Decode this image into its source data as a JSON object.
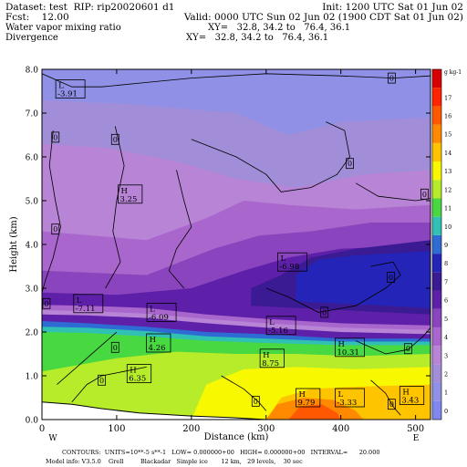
{
  "header": {
    "dataset": "Dataset: test  RIP: rip20020601 d1",
    "init": "Init: 1200 UTC Sat 01 Jun 02",
    "fcst": "Fcst:    12.00",
    "valid": "Valid: 0000 UTC Sun 02 Jun 02 (1900 CDT Sat 01 Jun 02)",
    "field1": "Water vapor mixing ratio",
    "xy1": "XY=   32.8, 34.2 to   76.4, 36.1",
    "field2": "Divergence",
    "xy2": "XY=   32.8, 34.2 to   76.4, 36.1"
  },
  "footer": {
    "line1": "CONTOURS:  UNITS=10**-5 s**-1   LOW= 0.000000+00   HIGH= 0.000000+00   INTERVAL=      20.000",
    "line2": "Model info: V3.5.0    Grell         Blackadar   Simple ice       12 km,   29 levels,    30 sec"
  },
  "chart_data": {
    "type": "heatmap",
    "xlabel": "Distance (km)",
    "ylabel": "Height (km)",
    "xlim": [
      0,
      520
    ],
    "ylim": [
      0,
      8
    ],
    "x_ticks": [
      "0",
      "100",
      "200",
      "300",
      "400",
      "500"
    ],
    "y_ticks": [
      "0.0",
      "1.0",
      "2.0",
      "3.0",
      "4.0",
      "5.0",
      "6.0",
      "7.0",
      "8.0"
    ],
    "endpoint_left": "W",
    "endpoint_right": "E",
    "colorbar": {
      "unit": "g kg-1",
      "levels": [
        "0",
        "1",
        "2",
        "3",
        "4",
        "5",
        "6",
        "7",
        "8",
        "9",
        "10",
        "11",
        "12",
        "13",
        "14",
        "15",
        "16",
        "17",
        "18"
      ],
      "colors": [
        "#8088ee",
        "#9090e6",
        "#a28ed8",
        "#b784d6",
        "#a966cc",
        "#8a44be",
        "#5e1fa9",
        "#3a1b94",
        "#2424b8",
        "#2e6cd4",
        "#30c1b3",
        "#48d842",
        "#b6ec2a",
        "#f8f800",
        "#ffc400",
        "#ff8a00",
        "#ff5800",
        "#ff2400",
        "#d80000"
      ]
    },
    "annotations": [
      {
        "label": "L",
        "value": "-3.91",
        "x": 38,
        "y": 7.55
      },
      {
        "label": "H",
        "value": "3.25",
        "x": 118,
        "y": 5.15
      },
      {
        "label": "L",
        "value": "-6.98",
        "x": 335,
        "y": 3.6
      },
      {
        "label": "L",
        "value": "-7.11",
        "x": 62,
        "y": 2.65
      },
      {
        "label": "L",
        "value": "-6.09",
        "x": 160,
        "y": 2.45
      },
      {
        "label": "L",
        "value": "-5.16",
        "x": 320,
        "y": 2.15
      },
      {
        "label": "H",
        "value": "4.26",
        "x": 156,
        "y": 1.75
      },
      {
        "label": "H",
        "value": "10.31",
        "x": 412,
        "y": 1.65
      },
      {
        "label": "H",
        "value": "8.75",
        "x": 308,
        "y": 1.4
      },
      {
        "label": "H",
        "value": "6.35",
        "x": 130,
        "y": 1.05
      },
      {
        "label": "H",
        "value": "9.79",
        "x": 356,
        "y": 0.5
      },
      {
        "label": "L",
        "value": "-3.33",
        "x": 412,
        "y": 0.5
      },
      {
        "label": "H",
        "value": "3.43",
        "x": 495,
        "y": 0.55
      }
    ],
    "zero_labels": [
      {
        "value": "0",
        "x": 468,
        "y": 7.8
      },
      {
        "value": "0",
        "x": 18,
        "y": 6.45
      },
      {
        "value": "0",
        "x": 98,
        "y": 6.4
      },
      {
        "value": "0",
        "x": 412,
        "y": 5.85
      },
      {
        "value": "0",
        "x": 512,
        "y": 5.15
      },
      {
        "value": "0",
        "x": 18,
        "y": 4.35
      },
      {
        "value": "0",
        "x": 467,
        "y": 3.25
      },
      {
        "value": "0",
        "x": 6,
        "y": 2.65
      },
      {
        "value": "0",
        "x": 378,
        "y": 2.45
      },
      {
        "value": "0",
        "x": 98,
        "y": 1.65
      },
      {
        "value": "0",
        "x": 490,
        "y": 1.62
      },
      {
        "value": "0",
        "x": 80,
        "y": 0.9
      },
      {
        "value": "0",
        "x": 286,
        "y": 0.42
      },
      {
        "value": "0",
        "x": 468,
        "y": 0.35
      }
    ]
  }
}
